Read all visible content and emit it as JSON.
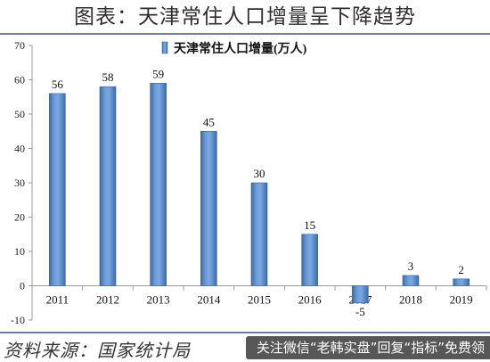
{
  "page_title": "图表：天津常住人口增量呈下降趋势",
  "source_text": "资料来源：国家统计局",
  "overlay_text": "关注微信“老韩实盘”回复“指标”免费领",
  "chart_data": {
    "type": "bar",
    "title": "",
    "xlabel": "",
    "ylabel": "",
    "categories": [
      "2011",
      "2012",
      "2013",
      "2014",
      "2015",
      "2016",
      "2017",
      "2018",
      "2019"
    ],
    "series": [
      {
        "name": "天津常住人口增量(万人)",
        "values": [
          56,
          58,
          59,
          45,
          30,
          15,
          -5,
          3,
          2
        ]
      }
    ],
    "ylim": [
      -10,
      70
    ],
    "yticks": [
      -10,
      0,
      10,
      20,
      30,
      40,
      50,
      60,
      70
    ],
    "grid": false,
    "legend": "top-center",
    "data_labels": true,
    "bar_color": "#4f81bd"
  }
}
